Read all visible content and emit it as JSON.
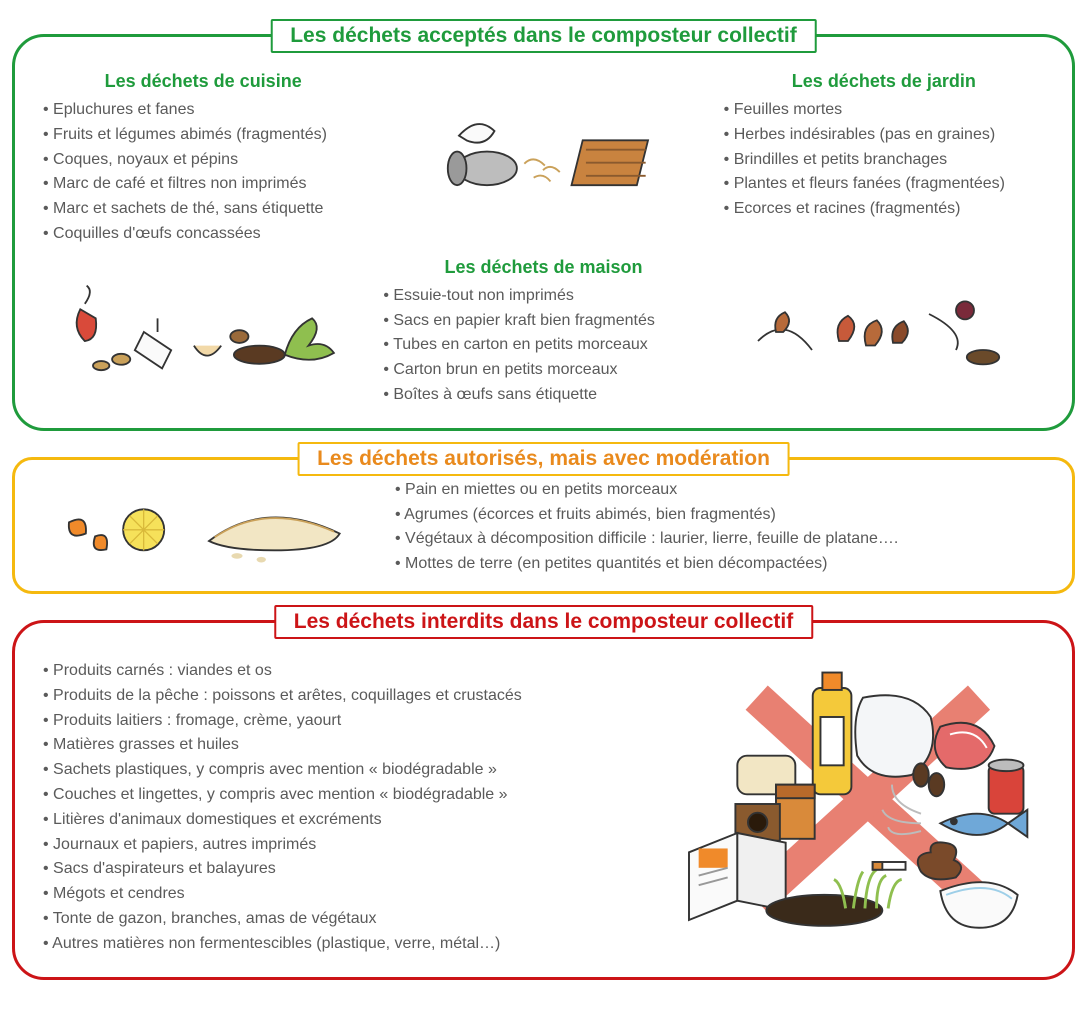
{
  "colors": {
    "green": "#1f9b3c",
    "yellow": "#f5b90f",
    "orange": "#e98a1d",
    "red": "#cc1417",
    "text_body": "#5a5a5a",
    "brown": "#8a5a2e",
    "leaf": "#6a8b2e",
    "card": "#c9833f"
  },
  "accepted": {
    "title": "Les déchets acceptés dans le composteur collectif",
    "kitchen": {
      "heading": "Les déchets de cuisine",
      "items": [
        "Epluchures et fanes",
        "Fruits et légumes abimés (fragmentés)",
        "Coques, noyaux et pépins",
        "Marc de café et filtres non imprimés",
        "Marc et sachets de thé, sans étiquette",
        "Coquilles d'œufs concassées"
      ]
    },
    "house": {
      "heading": "Les déchets de maison",
      "items": [
        "Essuie-tout non imprimés",
        "Sacs en papier kraft bien fragmentés",
        "Tubes en carton en petits morceaux",
        "Carton brun en petits morceaux",
        "Boîtes à œufs sans étiquette"
      ]
    },
    "garden": {
      "heading": "Les déchets de jardin",
      "items": [
        "Feuilles mortes",
        "Herbes indésirables (pas en graines)",
        "Brindilles et petits branchages",
        "Plantes et fleurs fanées (fragmentées)",
        "Ecorces et racines (fragmentés)"
      ]
    }
  },
  "moderation": {
    "title": "Les déchets autorisés, mais avec modération",
    "items": [
      "Pain en miettes ou en petits morceaux",
      "Agrumes (écorces et fruits abimés, bien fragmentés)",
      "Végétaux à décomposition difficile : laurier, lierre, feuille de platane….",
      "Mottes de terre (en petites quantités et bien décompactées)"
    ]
  },
  "forbidden": {
    "title": "Les déchets interdits dans le composteur collectif",
    "items": [
      "Produits carnés : viandes et os",
      "Produits de la pêche : poissons et arêtes, coquillages et crustacés",
      "Produits laitiers : fromage, crème, yaourt",
      "Matières grasses et huiles",
      "Sachets plastiques, y compris avec mention « biodégradable »",
      "Couches et lingettes, y compris avec mention « biodégradable »",
      "Litières d'animaux domestiques et excréments",
      "Journaux et papiers, autres imprimés",
      "Sacs d'aspirateurs et balayures",
      "Mégots et cendres",
      "Tonte de gazon, branches, amas de végétaux",
      "Autres matières non fermentescibles (plastique, verre, métal…)"
    ]
  }
}
